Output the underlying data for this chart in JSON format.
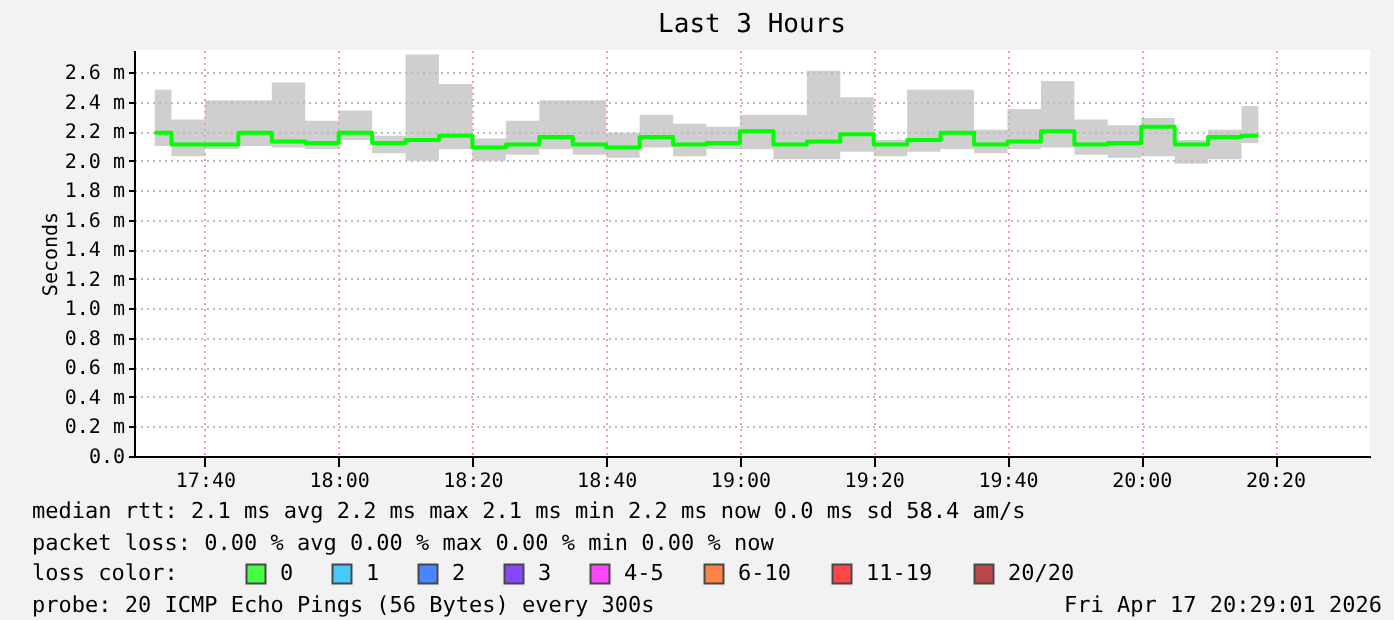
{
  "chart_data": {
    "type": "step",
    "title": "Last 3 Hours",
    "ylabel": "Seconds",
    "legend_title": "loss color:",
    "x": [
      17.5417,
      17.625,
      17.7083,
      17.7917,
      17.875,
      17.9583,
      18.0417,
      18.125,
      18.2083,
      18.2917,
      18.375,
      18.4583,
      18.5417,
      18.625,
      18.7083,
      18.7917,
      18.875,
      18.9583,
      19.0417,
      19.125,
      19.2083,
      19.2917,
      19.375,
      19.4583,
      19.5417,
      19.625,
      19.7083,
      19.7917,
      19.875,
      19.9583,
      20.0417,
      20.125,
      20.2083,
      20.2917
    ],
    "series": [
      {
        "name": "0",
        "color": "#00ff00",
        "values": [
          2.19,
          2.11,
          2.11,
          2.19,
          2.13,
          2.12,
          2.19,
          2.12,
          2.14,
          2.17,
          2.09,
          2.11,
          2.16,
          2.11,
          2.09,
          2.16,
          2.11,
          2.12,
          2.2,
          2.11,
          2.13,
          2.18,
          2.11,
          2.14,
          2.19,
          2.11,
          2.13,
          2.2,
          2.11,
          2.12,
          2.23,
          2.11,
          2.16,
          2.17
        ],
        "lower": [
          2.1,
          2.03,
          2.08,
          2.1,
          2.09,
          2.08,
          2.14,
          2.05,
          2.0,
          2.08,
          2.0,
          2.04,
          2.08,
          2.04,
          2.02,
          2.09,
          2.03,
          2.08,
          2.08,
          2.01,
          2.01,
          2.06,
          2.03,
          2.06,
          2.08,
          2.05,
          2.08,
          2.09,
          2.04,
          2.02,
          2.03,
          1.98,
          2.01,
          2.12
        ],
        "upper": [
          2.48,
          2.28,
          2.41,
          2.41,
          2.53,
          2.27,
          2.34,
          2.17,
          2.72,
          2.52,
          2.15,
          2.27,
          2.41,
          2.41,
          2.19,
          2.31,
          2.25,
          2.23,
          2.31,
          2.31,
          2.61,
          2.43,
          2.14,
          2.48,
          2.48,
          2.21,
          2.35,
          2.54,
          2.28,
          2.24,
          2.29,
          2.14,
          2.21,
          2.37
        ]
      },
      {
        "name": "1",
        "color": "#00b8ff",
        "values": [
          null,
          null,
          null,
          null,
          null,
          null,
          null,
          null,
          null,
          null,
          null,
          null,
          null,
          null,
          null,
          null,
          null,
          null,
          null,
          null,
          null,
          null,
          null,
          null,
          null,
          null,
          null,
          null,
          null,
          null,
          null,
          null,
          null,
          null
        ]
      },
      {
        "name": "2",
        "color": "#0059ff",
        "values": [
          null,
          null,
          null,
          null,
          null,
          null,
          null,
          null,
          null,
          null,
          null,
          null,
          null,
          null,
          null,
          null,
          null,
          null,
          null,
          null,
          null,
          null,
          null,
          null,
          null,
          null,
          null,
          null,
          null,
          null,
          null,
          null,
          null,
          null
        ]
      },
      {
        "name": "3",
        "color": "#5e00ff",
        "values": [
          null,
          null,
          null,
          null,
          null,
          null,
          null,
          null,
          null,
          null,
          null,
          null,
          null,
          null,
          null,
          null,
          null,
          null,
          null,
          null,
          null,
          null,
          null,
          null,
          null,
          null,
          null,
          null,
          null,
          null,
          null,
          null,
          null,
          null
        ]
      },
      {
        "name": "4-5",
        "color": "#ff00fe",
        "values": [
          null,
          null,
          null,
          null,
          null,
          null,
          null,
          null,
          null,
          null,
          null,
          null,
          null,
          null,
          null,
          null,
          null,
          null,
          null,
          null,
          null,
          null,
          null,
          null,
          null,
          null,
          null,
          null,
          null,
          null,
          null,
          null,
          null,
          null
        ]
      },
      {
        "name": "6-10",
        "color": "#ff5500",
        "values": [
          null,
          null,
          null,
          null,
          null,
          null,
          null,
          null,
          null,
          null,
          null,
          null,
          null,
          null,
          null,
          null,
          null,
          null,
          null,
          null,
          null,
          null,
          null,
          null,
          null,
          null,
          null,
          null,
          null,
          null,
          null,
          null,
          null,
          null
        ]
      },
      {
        "name": "11-19",
        "color": "#ff0000",
        "values": [
          null,
          null,
          null,
          null,
          null,
          null,
          null,
          null,
          null,
          null,
          null,
          null,
          null,
          null,
          null,
          null,
          null,
          null,
          null,
          null,
          null,
          null,
          null,
          null,
          null,
          null,
          null,
          null,
          null,
          null,
          null,
          null,
          null,
          null
        ]
      },
      {
        "name": "20/20",
        "color": "#a10000",
        "values": [
          null,
          null,
          null,
          null,
          null,
          null,
          null,
          null,
          null,
          null,
          null,
          null,
          null,
          null,
          null,
          null,
          null,
          null,
          null,
          null,
          null,
          null,
          null,
          null,
          null,
          null,
          null,
          null,
          null,
          null,
          null,
          null,
          null,
          null
        ]
      }
    ],
    "xlim": [
      17.49,
      20.57
    ],
    "xticks": [
      {
        "value": 17.6667,
        "label": "17:40"
      },
      {
        "value": 18.0,
        "label": "18:00"
      },
      {
        "value": 18.3333,
        "label": "18:20"
      },
      {
        "value": 18.6667,
        "label": "18:40"
      },
      {
        "value": 19.0,
        "label": "19:00"
      },
      {
        "value": 19.3333,
        "label": "19:20"
      },
      {
        "value": 19.6667,
        "label": "19:40"
      },
      {
        "value": 20.0,
        "label": "20:00"
      },
      {
        "value": 20.3333,
        "label": "20:20"
      }
    ],
    "ylim": [
      0,
      2.75
    ],
    "yticks": [
      {
        "value": 0,
        "label": "0.0"
      },
      {
        "value": 0.2,
        "label": "0.2 m"
      },
      {
        "value": 0.4,
        "label": "0.4 m"
      },
      {
        "value": 0.6,
        "label": "0.6 m"
      },
      {
        "value": 0.8,
        "label": "0.8 m"
      },
      {
        "value": 1.0,
        "label": "1.0 m"
      },
      {
        "value": 1.2,
        "label": "1.2 m"
      },
      {
        "value": 1.4,
        "label": "1.4 m"
      },
      {
        "value": 1.6,
        "label": "1.6 m"
      },
      {
        "value": 1.8,
        "label": "1.8 m"
      },
      {
        "value": 2.0,
        "label": "2.0 m"
      },
      {
        "value": 2.2,
        "label": "2.2 m"
      },
      {
        "value": 2.4,
        "label": "2.4 m"
      },
      {
        "value": 2.6,
        "label": "2.6 m"
      }
    ],
    "grid": true,
    "legend": "bottom",
    "annotations": [
      "median rtt: 2.1 ms avg 2.2 ms max 2.1 ms min 2.2 ms now 0.0 ms sd 58.4 am/s",
      "packet loss: 0.00 % avg 0.00 % max 0.00 % min 0.00 % now",
      "probe: 20 ICMP Echo Pings (56 Bytes) every 300s",
      "Fri Apr 17 20:29:01 2026"
    ]
  }
}
